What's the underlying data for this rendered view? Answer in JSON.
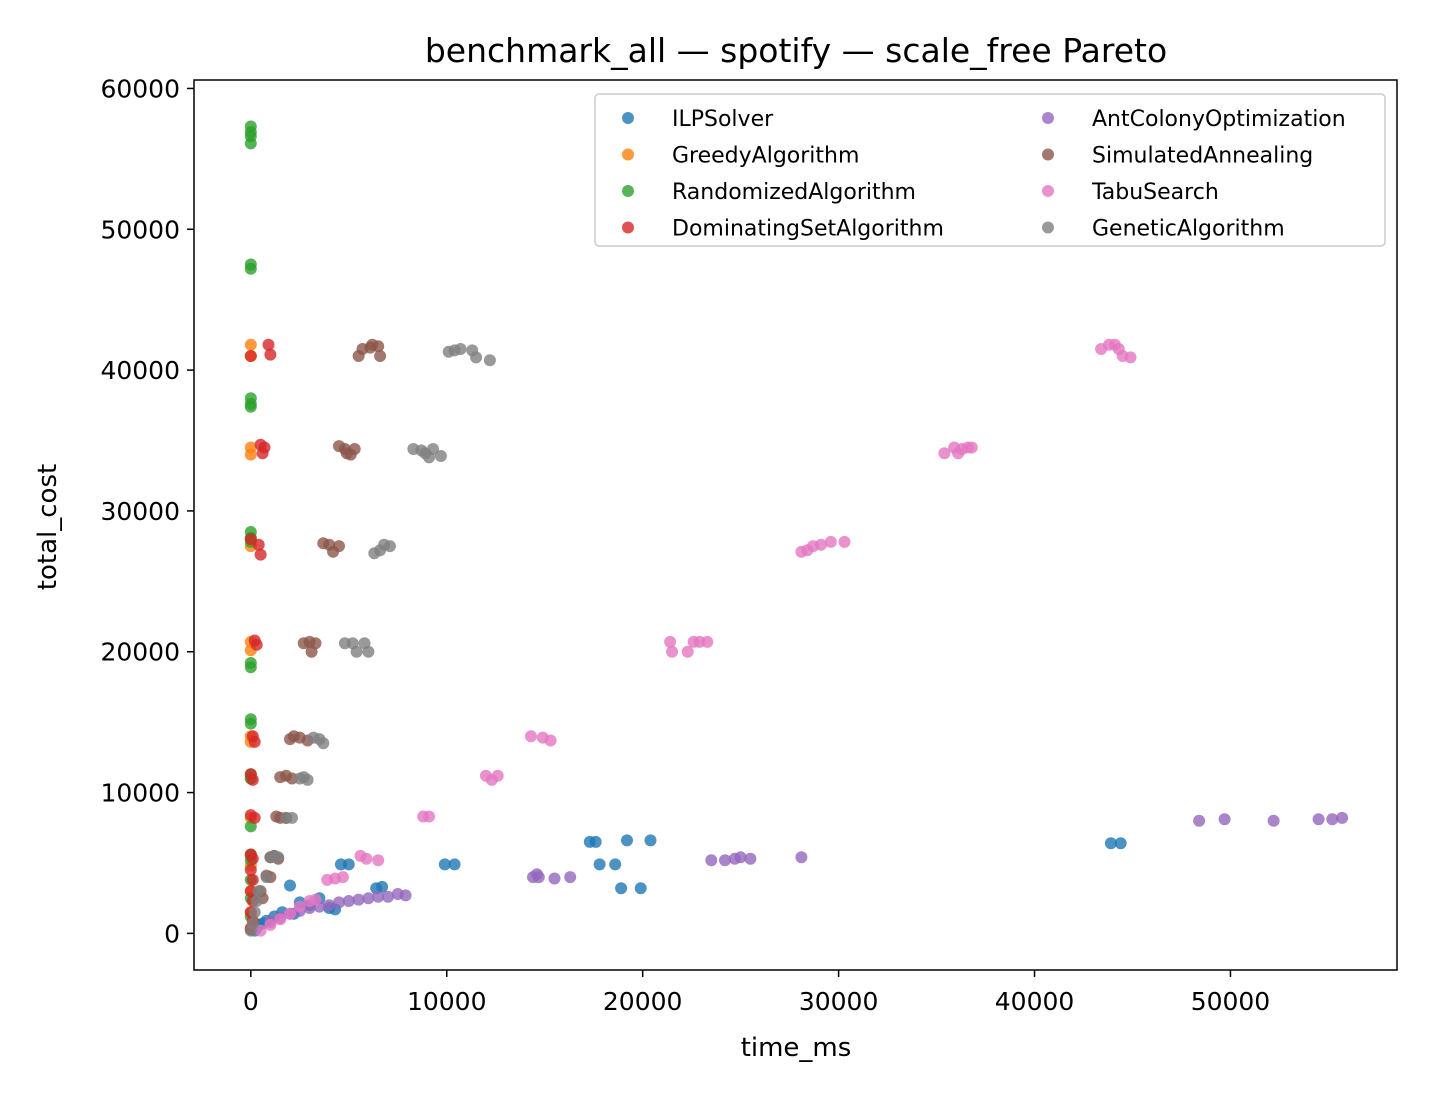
{
  "chart_data": {
    "type": "scatter",
    "title": "benchmark_all — spotify — scale_free Pareto",
    "xlabel": "time_ms",
    "ylabel": "total_cost",
    "xlim": [
      -2900,
      58500
    ],
    "ylim": [
      -2600,
      60600
    ],
    "xticks": [
      0,
      10000,
      20000,
      30000,
      40000,
      50000
    ],
    "yticks": [
      0,
      10000,
      20000,
      30000,
      40000,
      50000,
      60000
    ],
    "grid": false,
    "legend": {
      "position": "top-right",
      "columns": 2
    },
    "series": [
      {
        "name": "ILPSolver",
        "color": "#1f77b4",
        "points": [
          [
            200,
            200
          ],
          [
            300,
            400
          ],
          [
            400,
            600
          ],
          [
            600,
            700
          ],
          [
            800,
            900
          ],
          [
            1200,
            1200
          ],
          [
            1600,
            1500
          ],
          [
            2000,
            3400
          ],
          [
            2200,
            1400
          ],
          [
            2500,
            2200
          ],
          [
            3000,
            2000
          ],
          [
            3500,
            2500
          ],
          [
            4000,
            1800
          ],
          [
            4300,
            1700
          ],
          [
            4600,
            4900
          ],
          [
            5000,
            4900
          ],
          [
            6400,
            3200
          ],
          [
            6700,
            3300
          ],
          [
            9900,
            4900
          ],
          [
            10400,
            4900
          ],
          [
            17300,
            6500
          ],
          [
            17600,
            6500
          ],
          [
            17800,
            4900
          ],
          [
            18600,
            4900
          ],
          [
            18900,
            3200
          ],
          [
            19200,
            6600
          ],
          [
            19900,
            3200
          ],
          [
            20400,
            6600
          ],
          [
            43900,
            6400
          ],
          [
            44400,
            6400
          ]
        ]
      },
      {
        "name": "GreedyAlgorithm",
        "color": "#ff7f0e",
        "points": [
          [
            0,
            41800
          ],
          [
            0,
            41000
          ],
          [
            0,
            34500
          ],
          [
            0,
            34000
          ],
          [
            0,
            27500
          ],
          [
            0,
            20700
          ],
          [
            0,
            20100
          ],
          [
            0,
            14000
          ],
          [
            0,
            13600
          ],
          [
            0,
            11000
          ],
          [
            0,
            8200
          ],
          [
            0,
            5500
          ],
          [
            0,
            4800
          ],
          [
            0,
            3000
          ],
          [
            0,
            1500
          ],
          [
            0,
            400
          ]
        ]
      },
      {
        "name": "RandomizedAlgorithm",
        "color": "#2ca02c",
        "points": [
          [
            0,
            57300
          ],
          [
            0,
            56900
          ],
          [
            0,
            56600
          ],
          [
            0,
            56100
          ],
          [
            0,
            47500
          ],
          [
            0,
            47200
          ],
          [
            0,
            38000
          ],
          [
            0,
            37600
          ],
          [
            0,
            37400
          ],
          [
            0,
            28500
          ],
          [
            0,
            28100
          ],
          [
            0,
            27800
          ],
          [
            0,
            19200
          ],
          [
            0,
            18900
          ],
          [
            0,
            15200
          ],
          [
            0,
            14900
          ],
          [
            0,
            11300
          ],
          [
            0,
            11000
          ],
          [
            0,
            7600
          ],
          [
            0,
            5600
          ],
          [
            0,
            5200
          ],
          [
            0,
            3800
          ],
          [
            0,
            2500
          ],
          [
            0,
            1200
          ],
          [
            0,
            300
          ]
        ]
      },
      {
        "name": "DominatingSetAlgorithm",
        "color": "#d62728",
        "points": [
          [
            0,
            41000
          ],
          [
            900,
            41800
          ],
          [
            1000,
            41100
          ],
          [
            500,
            34700
          ],
          [
            700,
            34500
          ],
          [
            600,
            34100
          ],
          [
            0,
            28000
          ],
          [
            400,
            27600
          ],
          [
            500,
            26900
          ],
          [
            200,
            20800
          ],
          [
            300,
            20500
          ],
          [
            100,
            14000
          ],
          [
            200,
            13600
          ],
          [
            0,
            11300
          ],
          [
            100,
            10900
          ],
          [
            0,
            8400
          ],
          [
            200,
            8200
          ],
          [
            0,
            5600
          ],
          [
            100,
            5300
          ],
          [
            0,
            4500
          ],
          [
            100,
            3800
          ],
          [
            0,
            3000
          ],
          [
            100,
            2300
          ],
          [
            0,
            1500
          ],
          [
            100,
            900
          ],
          [
            0,
            300
          ]
        ]
      },
      {
        "name": "AntColonyOptimization",
        "color": "#9467bd",
        "points": [
          [
            1000,
            800
          ],
          [
            1500,
            1100
          ],
          [
            2000,
            1400
          ],
          [
            2500,
            1600
          ],
          [
            3000,
            1800
          ],
          [
            3500,
            1900
          ],
          [
            4000,
            2000
          ],
          [
            4500,
            2200
          ],
          [
            5000,
            2300
          ],
          [
            5500,
            2400
          ],
          [
            6000,
            2500
          ],
          [
            6500,
            2600
          ],
          [
            7000,
            2600
          ],
          [
            7500,
            2800
          ],
          [
            7900,
            2700
          ],
          [
            14400,
            4000
          ],
          [
            14600,
            4200
          ],
          [
            14700,
            4000
          ],
          [
            15500,
            3900
          ],
          [
            16300,
            4000
          ],
          [
            23500,
            5200
          ],
          [
            24200,
            5200
          ],
          [
            24700,
            5300
          ],
          [
            25000,
            5400
          ],
          [
            25500,
            5300
          ],
          [
            28100,
            5400
          ],
          [
            48400,
            8000
          ],
          [
            49700,
            8100
          ],
          [
            52200,
            8000
          ],
          [
            54500,
            8100
          ],
          [
            55200,
            8100
          ],
          [
            55700,
            8200
          ]
        ]
      },
      {
        "name": "SimulatedAnnealing",
        "color": "#8c564b",
        "points": [
          [
            5500,
            41000
          ],
          [
            5700,
            41500
          ],
          [
            6100,
            41600
          ],
          [
            6200,
            41800
          ],
          [
            6500,
            41700
          ],
          [
            6600,
            41000
          ],
          [
            4500,
            34600
          ],
          [
            4800,
            34400
          ],
          [
            4900,
            34100
          ],
          [
            5100,
            34000
          ],
          [
            5300,
            34400
          ],
          [
            3700,
            27700
          ],
          [
            4000,
            27600
          ],
          [
            4200,
            27100
          ],
          [
            4500,
            27500
          ],
          [
            2700,
            20600
          ],
          [
            3000,
            20700
          ],
          [
            3100,
            20000
          ],
          [
            3300,
            20600
          ],
          [
            2000,
            13800
          ],
          [
            2200,
            14000
          ],
          [
            2500,
            13900
          ],
          [
            2900,
            13700
          ],
          [
            1500,
            11100
          ],
          [
            1800,
            11200
          ],
          [
            2100,
            11000
          ],
          [
            1300,
            8300
          ],
          [
            1500,
            8200
          ],
          [
            1800,
            8200
          ],
          [
            1000,
            5400
          ],
          [
            1200,
            5500
          ],
          [
            1400,
            5300
          ],
          [
            800,
            4100
          ],
          [
            1000,
            4000
          ],
          [
            500,
            3000
          ],
          [
            600,
            2500
          ]
        ]
      },
      {
        "name": "TabuSearch",
        "color": "#e377c2",
        "points": [
          [
            43400,
            41500
          ],
          [
            43800,
            41800
          ],
          [
            44100,
            41800
          ],
          [
            44300,
            41500
          ],
          [
            44500,
            41000
          ],
          [
            44900,
            40900
          ],
          [
            35400,
            34100
          ],
          [
            35900,
            34500
          ],
          [
            36100,
            34100
          ],
          [
            36300,
            34400
          ],
          [
            36600,
            34500
          ],
          [
            36800,
            34500
          ],
          [
            28100,
            27100
          ],
          [
            28400,
            27200
          ],
          [
            28700,
            27500
          ],
          [
            29100,
            27600
          ],
          [
            29600,
            27800
          ],
          [
            30300,
            27800
          ],
          [
            21400,
            20700
          ],
          [
            21500,
            20000
          ],
          [
            22300,
            20000
          ],
          [
            22600,
            20700
          ],
          [
            22900,
            20700
          ],
          [
            23300,
            20700
          ],
          [
            14300,
            14000
          ],
          [
            14900,
            13900
          ],
          [
            15300,
            13700
          ],
          [
            12000,
            11200
          ],
          [
            12300,
            10900
          ],
          [
            12600,
            11200
          ],
          [
            8800,
            8300
          ],
          [
            9100,
            8300
          ],
          [
            5600,
            5500
          ],
          [
            5900,
            5300
          ],
          [
            6500,
            5200
          ],
          [
            3900,
            3800
          ],
          [
            4300,
            3900
          ],
          [
            4700,
            4000
          ],
          [
            500,
            200
          ],
          [
            1000,
            600
          ],
          [
            1500,
            1000
          ],
          [
            2000,
            1400
          ],
          [
            2500,
            1900
          ],
          [
            3000,
            2300
          ],
          [
            3300,
            2400
          ]
        ]
      },
      {
        "name": "GeneticAlgorithm",
        "color": "#7f7f7f",
        "points": [
          [
            10100,
            41300
          ],
          [
            10400,
            41400
          ],
          [
            10700,
            41500
          ],
          [
            11300,
            41400
          ],
          [
            11500,
            40900
          ],
          [
            12200,
            40700
          ],
          [
            8300,
            34400
          ],
          [
            8700,
            34300
          ],
          [
            8900,
            34100
          ],
          [
            9100,
            33800
          ],
          [
            9300,
            34400
          ],
          [
            9700,
            33900
          ],
          [
            6300,
            27000
          ],
          [
            6600,
            27200
          ],
          [
            6800,
            27600
          ],
          [
            7100,
            27500
          ],
          [
            4800,
            20600
          ],
          [
            5200,
            20600
          ],
          [
            5400,
            20000
          ],
          [
            5800,
            20600
          ],
          [
            6000,
            20000
          ],
          [
            3200,
            13900
          ],
          [
            3500,
            13800
          ],
          [
            3700,
            13500
          ],
          [
            2500,
            11000
          ],
          [
            2700,
            11100
          ],
          [
            2900,
            10900
          ],
          [
            1800,
            8200
          ],
          [
            2100,
            8200
          ],
          [
            1000,
            5400
          ],
          [
            1200,
            5500
          ],
          [
            1400,
            5400
          ],
          [
            800,
            4000
          ],
          [
            400,
            3000
          ],
          [
            300,
            2300
          ],
          [
            200,
            1500
          ],
          [
            100,
            700
          ],
          [
            0,
            200
          ]
        ]
      }
    ]
  }
}
